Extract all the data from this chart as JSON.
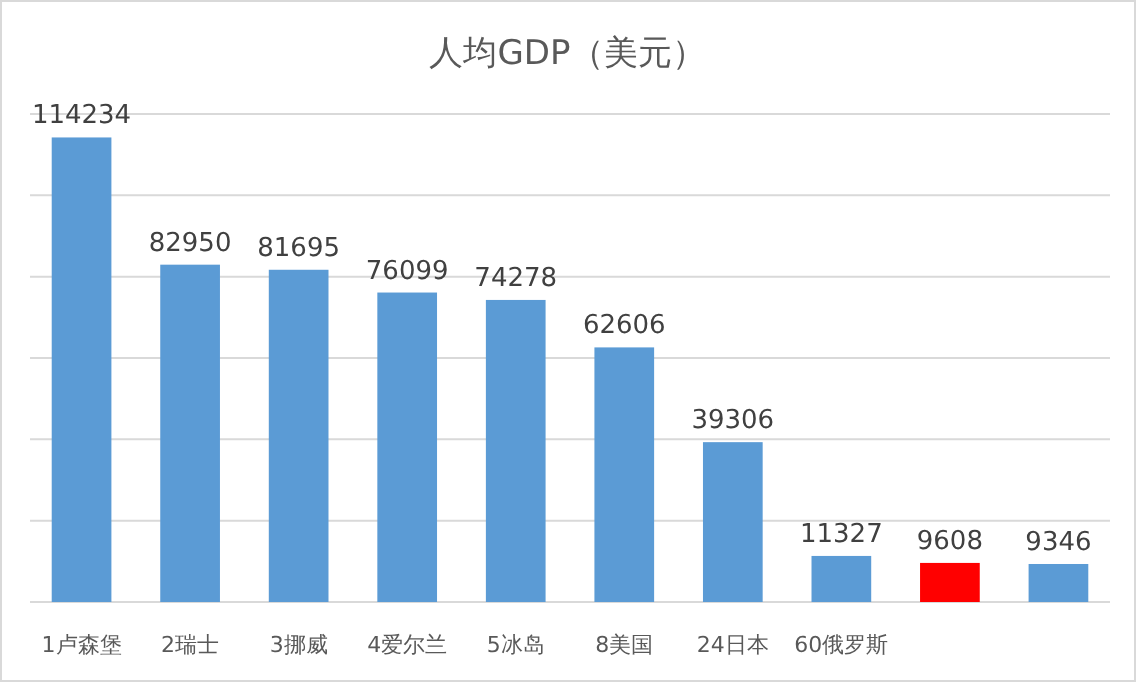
{
  "chart_data": {
    "type": "bar",
    "title": "人均GDP（美元）",
    "categories": [
      "1卢森堡",
      "2瑞士",
      "3挪威",
      "4爱尔兰",
      "5冰岛",
      "8美国",
      "24日本",
      "60俄罗斯",
      null,
      null
    ],
    "values": [
      114234,
      82950,
      81695,
      76099,
      74278,
      62606,
      39306,
      11327,
      9608,
      9346
    ],
    "colors": [
      "#5b9bd5",
      "#5b9bd5",
      "#5b9bd5",
      "#5b9bd5",
      "#5b9bd5",
      "#5b9bd5",
      "#5b9bd5",
      "#5b9bd5",
      "#ff0000",
      "#5b9bd5"
    ],
    "ylim": [
      0,
      120000
    ],
    "yticks": [
      {
        "value": 0,
        "label": null
      },
      {
        "value": 20000,
        "label": null
      },
      {
        "value": 40000,
        "label": null
      },
      {
        "value": 60000,
        "label": null
      },
      {
        "value": 80000,
        "label": null
      },
      {
        "value": 100000,
        "label": null
      },
      {
        "value": 120000,
        "label": null
      }
    ],
    "grid": "y",
    "tick_labels": "x",
    "data_labels": true
  }
}
